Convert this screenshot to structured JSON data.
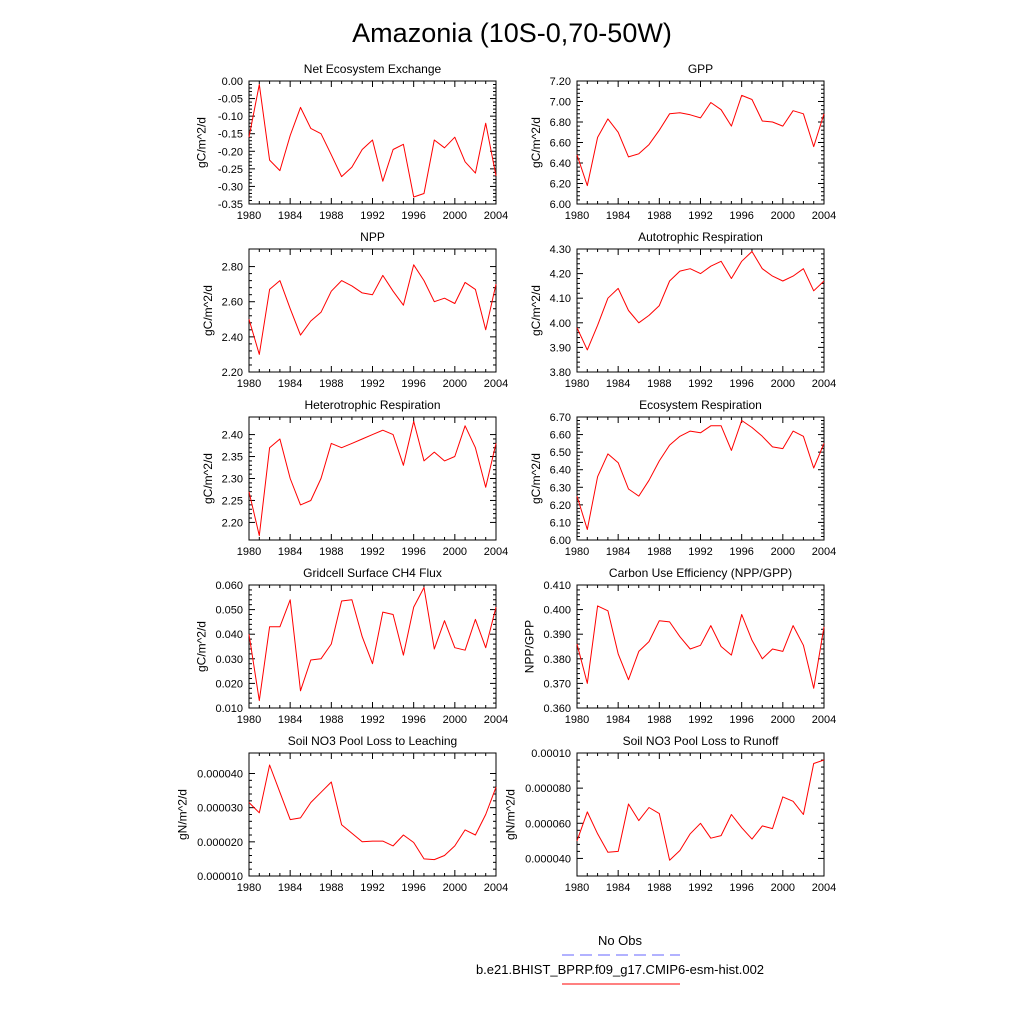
{
  "figure": {
    "title": "Amazonia (10S-0,70-50W)",
    "series_color": "#ff0000",
    "obs_color": "#6666ff",
    "legend": {
      "obs_label": "No Obs",
      "model_label": "b.e21.BHIST_BPRP.f09_g17.CMIP6-esm-hist.002"
    }
  },
  "chart_data": [
    {
      "type": "line",
      "title": "Net Ecosystem Exchange",
      "ylabel": "gC/m^2/d",
      "xlim": [
        1980,
        2004
      ],
      "x_ticks": [
        "1980",
        "1984",
        "1988",
        "1992",
        "1996",
        "2000",
        "2004"
      ],
      "ylim": [
        -0.35,
        0.0
      ],
      "y_ticks": [
        "0.00",
        "-0.05",
        "-0.10",
        "-0.15",
        "-0.20",
        "-0.25",
        "-0.30",
        "-0.35"
      ],
      "y_tick_values": [
        0.0,
        -0.05,
        -0.1,
        -0.15,
        -0.2,
        -0.25,
        -0.3,
        -0.35
      ],
      "x": [
        1980,
        1981,
        1982,
        1983,
        1984,
        1985,
        1986,
        1987,
        1988,
        1989,
        1990,
        1991,
        1992,
        1993,
        1994,
        1995,
        1996,
        1997,
        1998,
        1999,
        2000,
        2001,
        2002,
        2003,
        2004
      ],
      "y": [
        -0.16,
        -0.01,
        -0.225,
        -0.255,
        -0.155,
        -0.075,
        -0.135,
        -0.15,
        -0.21,
        -0.272,
        -0.245,
        -0.195,
        -0.168,
        -0.285,
        -0.195,
        -0.18,
        -0.33,
        -0.32,
        -0.168,
        -0.19,
        -0.16,
        -0.23,
        -0.262,
        -0.12,
        -0.27
      ]
    },
    {
      "type": "line",
      "title": "GPP",
      "ylabel": "gC/m^2/d",
      "xlim": [
        1980,
        2004
      ],
      "x_ticks": [
        "1980",
        "1984",
        "1988",
        "1992",
        "1996",
        "2000",
        "2004"
      ],
      "ylim": [
        6.0,
        7.2
      ],
      "y_ticks": [
        "7.20",
        "7.00",
        "6.80",
        "6.60",
        "6.40",
        "6.20",
        "6.00"
      ],
      "y_tick_values": [
        7.2,
        7.0,
        6.8,
        6.6,
        6.4,
        6.2,
        6.0
      ],
      "x": [
        1980,
        1981,
        1982,
        1983,
        1984,
        1985,
        1986,
        1987,
        1988,
        1989,
        1990,
        1991,
        1992,
        1993,
        1994,
        1995,
        1996,
        1997,
        1998,
        1999,
        2000,
        2001,
        2002,
        2003,
        2004
      ],
      "y": [
        6.48,
        6.18,
        6.65,
        6.83,
        6.7,
        6.46,
        6.49,
        6.58,
        6.72,
        6.88,
        6.89,
        6.87,
        6.84,
        6.99,
        6.92,
        6.76,
        7.06,
        7.02,
        6.81,
        6.8,
        6.76,
        6.91,
        6.88,
        6.56,
        6.88
      ]
    },
    {
      "type": "line",
      "title": "NPP",
      "ylabel": "gC/m^2/d",
      "xlim": [
        1980,
        2004
      ],
      "x_ticks": [
        "1980",
        "1984",
        "1988",
        "1992",
        "1996",
        "2000",
        "2004"
      ],
      "ylim": [
        2.2,
        2.9
      ],
      "y_ticks": [
        "2.80",
        "2.60",
        "2.40",
        "2.20"
      ],
      "y_tick_values": [
        2.8,
        2.6,
        2.4,
        2.2
      ],
      "x": [
        1980,
        1981,
        1982,
        1983,
        1984,
        1985,
        1986,
        1987,
        1988,
        1989,
        1990,
        1991,
        1992,
        1993,
        1994,
        1995,
        1996,
        1997,
        1998,
        1999,
        2000,
        2001,
        2002,
        2003,
        2004
      ],
      "y": [
        2.5,
        2.3,
        2.67,
        2.72,
        2.56,
        2.41,
        2.49,
        2.54,
        2.66,
        2.72,
        2.69,
        2.65,
        2.64,
        2.75,
        2.66,
        2.58,
        2.81,
        2.72,
        2.6,
        2.62,
        2.59,
        2.71,
        2.67,
        2.44,
        2.7
      ]
    },
    {
      "type": "line",
      "title": "Autotrophic Respiration",
      "ylabel": "gC/m^2/d",
      "xlim": [
        1980,
        2004
      ],
      "x_ticks": [
        "1980",
        "1984",
        "1988",
        "1992",
        "1996",
        "2000",
        "2004"
      ],
      "ylim": [
        3.8,
        4.3
      ],
      "y_ticks": [
        "4.30",
        "4.20",
        "4.10",
        "4.00",
        "3.90",
        "3.80"
      ],
      "y_tick_values": [
        4.3,
        4.2,
        4.1,
        4.0,
        3.9,
        3.8
      ],
      "x": [
        1980,
        1981,
        1982,
        1983,
        1984,
        1985,
        1986,
        1987,
        1988,
        1989,
        1990,
        1991,
        1992,
        1993,
        1994,
        1995,
        1996,
        1997,
        1998,
        1999,
        2000,
        2001,
        2002,
        2003,
        2004
      ],
      "y": [
        3.98,
        3.89,
        3.99,
        4.1,
        4.14,
        4.05,
        4.0,
        4.03,
        4.07,
        4.17,
        4.21,
        4.22,
        4.2,
        4.23,
        4.25,
        4.18,
        4.25,
        4.29,
        4.22,
        4.19,
        4.17,
        4.19,
        4.22,
        4.13,
        4.17
      ]
    },
    {
      "type": "line",
      "title": "Heterotrophic Respiration",
      "ylabel": "gC/m^2/d",
      "xlim": [
        1980,
        2004
      ],
      "x_ticks": [
        "1980",
        "1984",
        "1988",
        "1992",
        "1996",
        "2000",
        "2004"
      ],
      "ylim": [
        2.16,
        2.44
      ],
      "y_ticks": [
        "2.40",
        "2.35",
        "2.30",
        "2.25",
        "2.20"
      ],
      "y_tick_values": [
        2.4,
        2.35,
        2.3,
        2.25,
        2.2
      ],
      "x": [
        1980,
        1981,
        1982,
        1983,
        1984,
        1985,
        1986,
        1987,
        1988,
        1989,
        1990,
        1991,
        1992,
        1993,
        1994,
        1995,
        1996,
        1997,
        1998,
        1999,
        2000,
        2001,
        2002,
        2003,
        2004
      ],
      "y": [
        2.27,
        2.17,
        2.37,
        2.39,
        2.3,
        2.24,
        2.25,
        2.3,
        2.38,
        2.37,
        2.38,
        2.39,
        2.4,
        2.41,
        2.4,
        2.33,
        2.43,
        2.34,
        2.36,
        2.34,
        2.35,
        2.42,
        2.37,
        2.28,
        2.38
      ]
    },
    {
      "type": "line",
      "title": "Ecosystem Respiration",
      "ylabel": "gC/m^2/d",
      "xlim": [
        1980,
        2004
      ],
      "x_ticks": [
        "1980",
        "1984",
        "1988",
        "1992",
        "1996",
        "2000",
        "2004"
      ],
      "ylim": [
        6.0,
        6.7
      ],
      "y_ticks": [
        "6.70",
        "6.60",
        "6.50",
        "6.40",
        "6.30",
        "6.20",
        "6.10",
        "6.00"
      ],
      "y_tick_values": [
        6.7,
        6.6,
        6.5,
        6.4,
        6.3,
        6.2,
        6.1,
        6.0
      ],
      "x": [
        1980,
        1981,
        1982,
        1983,
        1984,
        1985,
        1986,
        1987,
        1988,
        1989,
        1990,
        1991,
        1992,
        1993,
        1994,
        1995,
        1996,
        1997,
        1998,
        1999,
        2000,
        2001,
        2002,
        2003,
        2004
      ],
      "y": [
        6.25,
        6.06,
        6.36,
        6.49,
        6.44,
        6.29,
        6.25,
        6.34,
        6.45,
        6.54,
        6.59,
        6.62,
        6.61,
        6.65,
        6.65,
        6.51,
        6.68,
        6.64,
        6.59,
        6.53,
        6.52,
        6.62,
        6.59,
        6.41,
        6.55
      ]
    },
    {
      "type": "line",
      "title": "Gridcell Surface CH4 Flux",
      "ylabel": "gC/m^2/d",
      "xlim": [
        1980,
        2004
      ],
      "x_ticks": [
        "1980",
        "1984",
        "1988",
        "1992",
        "1996",
        "2000",
        "2004"
      ],
      "ylim": [
        0.01,
        0.06
      ],
      "y_ticks": [
        "0.060",
        "0.050",
        "0.040",
        "0.030",
        "0.020",
        "0.010"
      ],
      "y_tick_values": [
        0.06,
        0.05,
        0.04,
        0.03,
        0.02,
        0.01
      ],
      "x": [
        1980,
        1981,
        1982,
        1983,
        1984,
        1985,
        1986,
        1987,
        1988,
        1989,
        1990,
        1991,
        1992,
        1993,
        1994,
        1995,
        1996,
        1997,
        1998,
        1999,
        2000,
        2001,
        2002,
        2003,
        2004
      ],
      "y": [
        0.04,
        0.013,
        0.043,
        0.043,
        0.054,
        0.017,
        0.0295,
        0.03,
        0.036,
        0.0535,
        0.054,
        0.039,
        0.028,
        0.049,
        0.048,
        0.0315,
        0.051,
        0.059,
        0.034,
        0.0455,
        0.0345,
        0.0335,
        0.046,
        0.0345,
        0.051
      ]
    },
    {
      "type": "line",
      "title": "Carbon Use Efficiency (NPP/GPP)",
      "ylabel": "NPP/GPP",
      "xlim": [
        1980,
        2004
      ],
      "x_ticks": [
        "1980",
        "1984",
        "1988",
        "1992",
        "1996",
        "2000",
        "2004"
      ],
      "ylim": [
        0.36,
        0.41
      ],
      "y_ticks": [
        "0.410",
        "0.400",
        "0.390",
        "0.380",
        "0.370",
        "0.360"
      ],
      "y_tick_values": [
        0.41,
        0.4,
        0.39,
        0.38,
        0.37,
        0.36
      ],
      "x": [
        1980,
        1981,
        1982,
        1983,
        1984,
        1985,
        1986,
        1987,
        1988,
        1989,
        1990,
        1991,
        1992,
        1993,
        1994,
        1995,
        1996,
        1997,
        1998,
        1999,
        2000,
        2001,
        2002,
        2003,
        2004
      ],
      "y": [
        0.386,
        0.37,
        0.4015,
        0.3995,
        0.382,
        0.3715,
        0.383,
        0.387,
        0.3955,
        0.395,
        0.389,
        0.384,
        0.3855,
        0.3935,
        0.385,
        0.3815,
        0.398,
        0.3875,
        0.38,
        0.384,
        0.383,
        0.3935,
        0.3855,
        0.368,
        0.393
      ]
    },
    {
      "type": "line",
      "title": "Soil NO3 Pool Loss to Leaching",
      "ylabel": "gN/m^2/d",
      "xlim": [
        1980,
        2004
      ],
      "x_ticks": [
        "1980",
        "1984",
        "1988",
        "1992",
        "1996",
        "2000",
        "2004"
      ],
      "ylim": [
        1e-05,
        4.6e-05
      ],
      "y_ticks": [
        "0.000040",
        "0.000030",
        "0.000020",
        "0.000010"
      ],
      "y_tick_values": [
        4e-05,
        3e-05,
        2e-05,
        1e-05
      ],
      "x": [
        1980,
        1981,
        1982,
        1983,
        1984,
        1985,
        1986,
        1987,
        1988,
        1989,
        1990,
        1991,
        1992,
        1993,
        1994,
        1995,
        1996,
        1997,
        1998,
        1999,
        2000,
        2001,
        2002,
        2003,
        2004
      ],
      "y": [
        3.15e-05,
        2.85e-05,
        4.25e-05,
        3.45e-05,
        2.65e-05,
        2.7e-05,
        3.15e-05,
        3.45e-05,
        3.75e-05,
        2.5e-05,
        2.25e-05,
        2e-05,
        2.02e-05,
        2.02e-05,
        1.88e-05,
        2.2e-05,
        1.98e-05,
        1.5e-05,
        1.48e-05,
        1.6e-05,
        1.88e-05,
        2.35e-05,
        2.2e-05,
        2.8e-05,
        3.6e-05
      ]
    },
    {
      "type": "line",
      "title": "Soil NO3 Pool Loss to Runoff",
      "ylabel": "gN/m^2/d",
      "xlim": [
        1980,
        2004
      ],
      "x_ticks": [
        "1980",
        "1984",
        "1988",
        "1992",
        "1996",
        "2000",
        "2004"
      ],
      "ylim": [
        3e-05,
        0.0001
      ],
      "y_ticks": [
        "0.00010",
        "0.000080",
        "0.000060",
        "0.000040"
      ],
      "y_tick_values": [
        0.0001,
        8e-05,
        6e-05,
        4e-05
      ],
      "x": [
        1980,
        1981,
        1982,
        1983,
        1984,
        1985,
        1986,
        1987,
        1988,
        1989,
        1990,
        1991,
        1992,
        1993,
        1994,
        1995,
        1996,
        1997,
        1998,
        1999,
        2000,
        2001,
        2002,
        2003,
        2004
      ],
      "y": [
        5e-05,
        6.65e-05,
        5.4e-05,
        4.35e-05,
        4.4e-05,
        7.1e-05,
        6.15e-05,
        6.9e-05,
        6.55e-05,
        3.9e-05,
        4.45e-05,
        5.4e-05,
        6e-05,
        5.15e-05,
        5.3e-05,
        6.5e-05,
        5.75e-05,
        5.1e-05,
        5.85e-05,
        5.7e-05,
        7.5e-05,
        7.25e-05,
        6.5e-05,
        9.4e-05,
        9.6e-05
      ]
    }
  ]
}
